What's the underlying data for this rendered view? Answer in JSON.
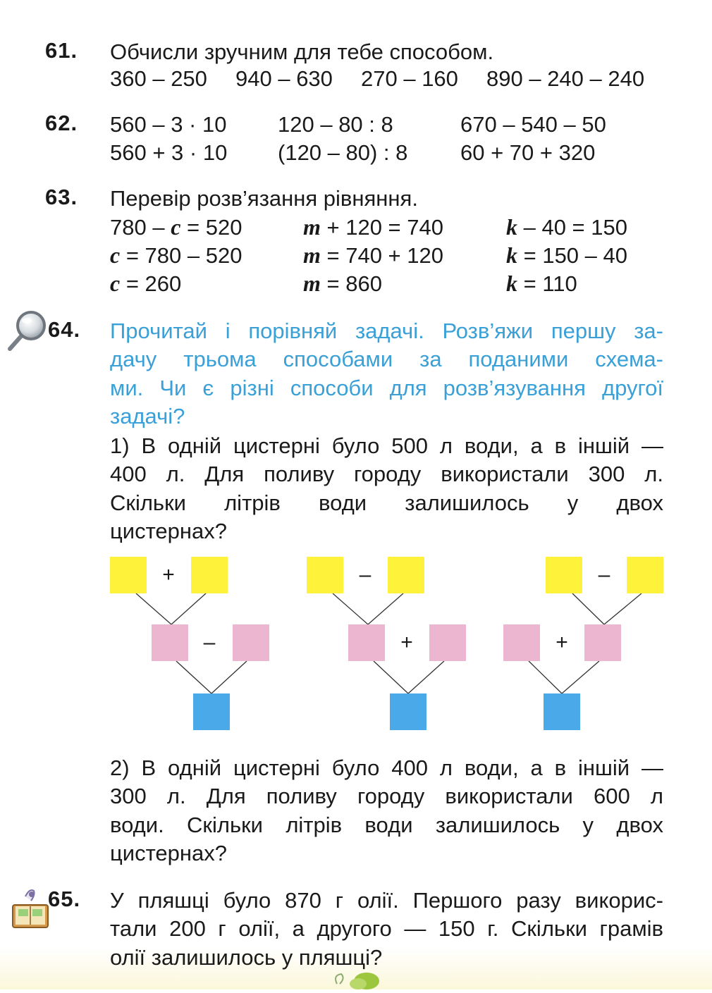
{
  "tasks": {
    "t61": {
      "number": "61.",
      "title": "Обчисли зручним для тебе способом.",
      "expr": [
        "360 – 250",
        "940 – 630",
        "270 – 160",
        "890 – 240 – 240"
      ]
    },
    "t62": {
      "number": "62.",
      "col1": [
        "560 – 3 · 10",
        "560 + 3 · 10"
      ],
      "col2": [
        "120 – 80 : 8",
        "(120 – 80) : 8"
      ],
      "col3": [
        "670 – 540 – 50",
        "60 + 70 + 320"
      ]
    },
    "t63": {
      "number": "63.",
      "title": "Перевір розв’язання рівняння.",
      "eq1": {
        "v": "c",
        "l1a": "780 – ",
        "l1b": " = 520",
        "l2b": " = 780 – 520",
        "l3b": " = 260"
      },
      "eq2": {
        "v": "m",
        "l1b": " + 120 = 740",
        "l2b": " = 740 + 120",
        "l3b": " = 860"
      },
      "eq3": {
        "v": "k",
        "l1b": " – 40 = 150",
        "l2b": " = 150 – 40",
        "l3b": " = 110"
      }
    },
    "t64": {
      "number": "64.",
      "intro": [
        "Прочитай і порівняй задачі. Розв’яжи першу за-",
        "дачу трьома способами за поданими схема-",
        "ми. Чи є різні способи для розв’язування другої",
        "задачі?"
      ],
      "problem1": [
        "1) В одній цистерні було 500 л води, а в іншій —",
        "400 л. Для поливу городу використали 300 л.",
        "Скільки літрів води залишилось у двох",
        "цистернах?"
      ],
      "schemes": [
        {
          "top_op": "+",
          "mid_op": "–"
        },
        {
          "top_op": "–",
          "mid_op": "+"
        },
        {
          "top_op": "–",
          "mid_op": "+"
        }
      ],
      "problem2": [
        "2) В одній цистерні було 400 л води, а в іншій —",
        "300 л. Для поливу городу використали 600 л",
        "води. Скільки літрів води залишилось у двох",
        "цистернах?"
      ]
    },
    "t65": {
      "number": "65.",
      "text": [
        "У пляшці було 870 г олії. Першого разу викорис-",
        "тали 200 г олії, а другого — 150 г. Скільки грамів",
        "олії залишилось у пляшці?"
      ]
    }
  },
  "icons": {
    "task64": "magnifier-icon",
    "task65": "book-icon"
  },
  "colors": {
    "heading_blue": "#3aa0d8",
    "scheme_yellow": "#fef33a",
    "scheme_pink": "#ecb6d1",
    "scheme_blue": "#4aa9e8"
  }
}
